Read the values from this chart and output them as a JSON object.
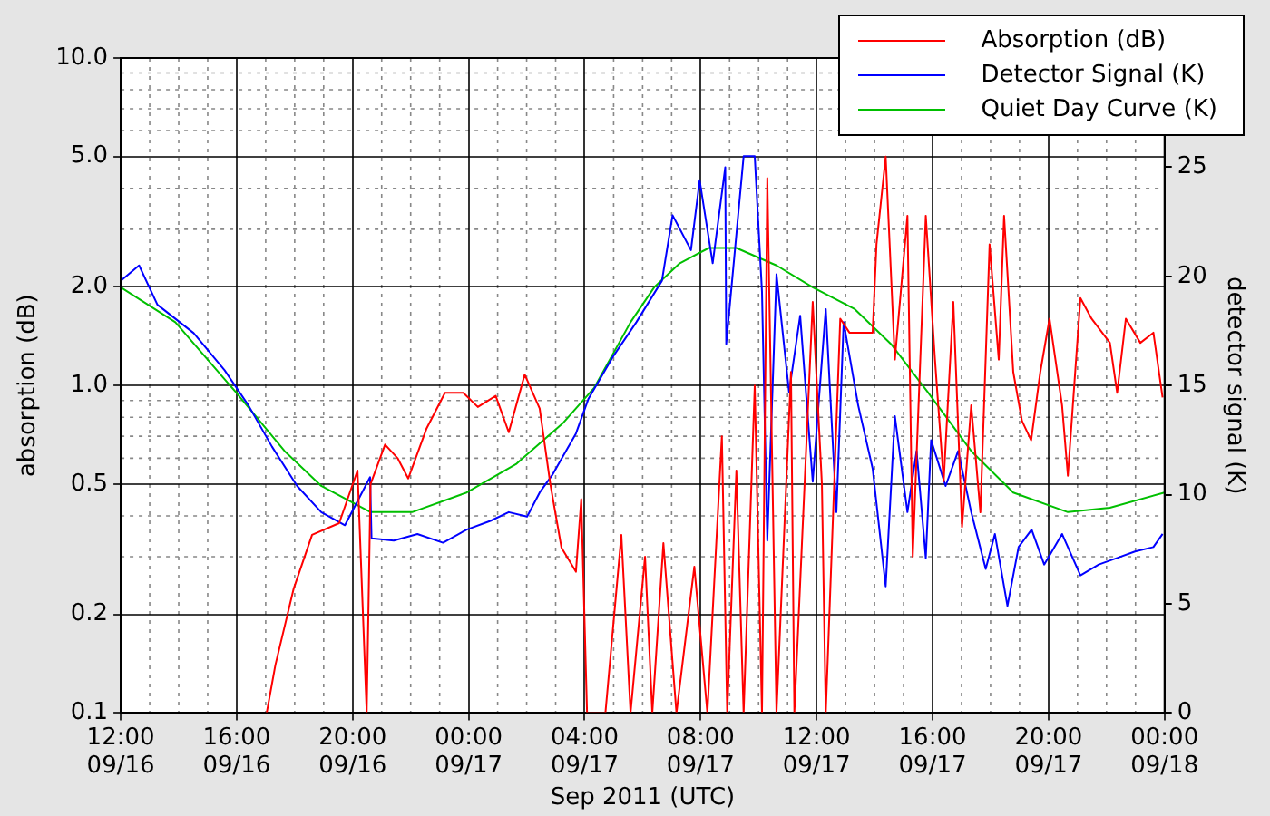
{
  "chart_data": {
    "type": "line",
    "xlabel": "Sep 2011 (UTC)",
    "ylabel": "absorption (dB)",
    "y2label": "detector signal (K)",
    "log": "y",
    "grid": true,
    "legend": "top right",
    "line_style": "solid",
    "marker": "none",
    "xlim": [
      "2011-09-16T12:00",
      "2011-09-18T00:00"
    ],
    "xticks": [
      {
        "value": "2011-09-16T12:00",
        "label": "12:00\n09/16"
      },
      {
        "value": "2011-09-16T16:00",
        "label": "16:00\n09/16"
      },
      {
        "value": "2011-09-16T20:00",
        "label": "20:00\n09/16"
      },
      {
        "value": "2011-09-17T00:00",
        "label": "00:00\n09/17"
      },
      {
        "value": "2011-09-17T04:00",
        "label": "04:00\n09/17"
      },
      {
        "value": "2011-09-17T08:00",
        "label": "08:00\n09/17"
      },
      {
        "value": "2011-09-17T12:00",
        "label": "12:00\n09/17"
      },
      {
        "value": "2011-09-17T16:00",
        "label": "16:00\n09/17"
      },
      {
        "value": "2011-09-17T20:00",
        "label": "20:00\n09/17"
      },
      {
        "value": "2011-09-18T00:00",
        "label": "00:00\n09/18"
      }
    ],
    "ylim": [
      0.1,
      10
    ],
    "yticks": [
      0.1,
      0.2,
      0.5,
      {
        "value": 1,
        "label": "1.0"
      },
      {
        "value": 2,
        "label": "2.0"
      },
      {
        "value": 5,
        "label": "5.0"
      },
      {
        "value": 10,
        "label": "10.0"
      }
    ],
    "y2lim": [
      0,
      30
    ],
    "y2ticks": [
      0,
      5,
      10,
      15,
      20,
      25
    ],
    "series": [
      {
        "name": "Absorption (dB)",
        "color": "#ff0000",
        "x": [
          "2011-09-16T17:02",
          "2011-09-16T17:20",
          "2011-09-16T17:58",
          "2011-09-16T18:36",
          "2011-09-16T19:32",
          "2011-09-16T20:10",
          "2011-09-16T20:29",
          "2011-09-16T20:37",
          "2011-09-16T21:07",
          "2011-09-16T21:33",
          "2011-09-16T21:55",
          "2011-09-16T22:33",
          "2011-09-16T23:11",
          "2011-09-16T23:49",
          "2011-09-17T00:19",
          "2011-09-17T00:56",
          "2011-09-17T01:23",
          "2011-09-17T01:56",
          "2011-09-17T02:27",
          "2011-09-17T02:49",
          "2011-09-17T03:12",
          "2011-09-17T03:42",
          "2011-09-17T03:53",
          "2011-09-17T04:05",
          "2011-09-17T04:43",
          "2011-09-17T05:16",
          "2011-09-17T05:35",
          "2011-09-17T06:05",
          "2011-09-17T06:20",
          "2011-09-17T06:43",
          "2011-09-17T07:10",
          "2011-09-17T07:47",
          "2011-09-17T08:14",
          "2011-09-17T08:44",
          "2011-09-17T08:55",
          "2011-09-17T09:14",
          "2011-09-17T09:29",
          "2011-09-17T09:52",
          "2011-09-17T10:07",
          "2011-09-17T10:18",
          "2011-09-17T10:37",
          "2011-09-17T11:07",
          "2011-09-17T11:14",
          "2011-09-17T11:52",
          "2011-09-17T12:11",
          "2011-09-17T12:19",
          "2011-09-17T12:49",
          "2011-09-17T13:08",
          "2011-09-17T13:56",
          "2011-09-17T14:04",
          "2011-09-17T14:23",
          "2011-09-17T14:42",
          "2011-09-17T15:08",
          "2011-09-17T15:19",
          "2011-09-17T15:46",
          "2011-09-17T16:05",
          "2011-09-17T16:23",
          "2011-09-17T16:43",
          "2011-09-17T17:01",
          "2011-09-17T17:20",
          "2011-09-17T17:39",
          "2011-09-17T17:58",
          "2011-09-17T18:17",
          "2011-09-17T18:28",
          "2011-09-17T18:47",
          "2011-09-17T19:05",
          "2011-09-17T19:24",
          "2011-09-17T19:43",
          "2011-09-17T20:02",
          "2011-09-17T20:28",
          "2011-09-17T20:40",
          "2011-09-17T21:06",
          "2011-09-17T21:29",
          "2011-09-17T22:07",
          "2011-09-17T22:22",
          "2011-09-17T22:40",
          "2011-09-17T23:10",
          "2011-09-17T23:37",
          "2011-09-17T23:56"
        ],
        "values": [
          0.1,
          0.14,
          0.24,
          0.35,
          0.38,
          0.55,
          0.1,
          0.5,
          0.66,
          0.6,
          0.52,
          0.74,
          0.95,
          0.95,
          0.86,
          0.93,
          0.72,
          1.08,
          0.85,
          0.5,
          0.32,
          0.27,
          0.45,
          0.1,
          0.1,
          0.35,
          0.1,
          0.3,
          0.1,
          0.33,
          0.1,
          0.28,
          0.1,
          0.7,
          0.1,
          0.55,
          0.1,
          1,
          0.1,
          4.3,
          0.1,
          1.1,
          0.1,
          1.8,
          0.5,
          0.1,
          1.6,
          1.45,
          1.45,
          2.7,
          5,
          1.2,
          3.3,
          0.3,
          3.3,
          1.2,
          0.51,
          1.8,
          0.37,
          0.87,
          0.41,
          2.7,
          1.2,
          3.3,
          1.1,
          0.78,
          0.68,
          1.1,
          1.6,
          0.87,
          0.53,
          1.85,
          1.6,
          1.35,
          0.95,
          1.6,
          1.35,
          1.45,
          0.92
        ]
      },
      {
        "name": "Detector Signal (K)",
        "color": "#0000ff",
        "axis": "y2",
        "x": [
          "2011-09-16T12:00",
          "2011-09-16T12:38",
          "2011-09-16T13:16",
          "2011-09-16T14:31",
          "2011-09-16T15:35",
          "2011-09-16T16:24",
          "2011-09-16T17:13",
          "2011-09-16T18:05",
          "2011-09-16T18:55",
          "2011-09-16T19:44",
          "2011-09-16T20:36",
          "2011-09-16T20:39",
          "2011-09-16T21:25",
          "2011-09-16T22:14",
          "2011-09-16T23:07",
          "2011-09-16T23:56",
          "2011-09-17T00:45",
          "2011-09-17T01:23",
          "2011-09-17T02:01",
          "2011-09-17T02:27",
          "2011-09-17T02:53",
          "2011-09-17T03:42",
          "2011-09-17T04:08",
          "2011-09-17T04:58",
          "2011-09-17T05:47",
          "2011-09-17T06:40",
          "2011-09-17T07:02",
          "2011-09-17T07:40",
          "2011-09-17T07:58",
          "2011-09-17T08:25",
          "2011-09-17T08:51",
          "2011-09-17T08:53",
          "2011-09-17T09:29",
          "2011-09-17T09:52",
          "2011-09-17T10:07",
          "2011-09-17T10:18",
          "2011-09-17T10:37",
          "2011-09-17T11:03",
          "2011-09-17T11:26",
          "2011-09-17T11:52",
          "2011-09-17T12:19",
          "2011-09-17T12:41",
          "2011-09-17T12:56",
          "2011-09-17T13:26",
          "2011-09-17T13:56",
          "2011-09-17T14:23",
          "2011-09-17T14:42",
          "2011-09-17T15:08",
          "2011-09-17T15:27",
          "2011-09-17T15:46",
          "2011-09-17T15:57",
          "2011-09-17T16:27",
          "2011-09-17T16:53",
          "2011-09-17T17:20",
          "2011-09-17T17:50",
          "2011-09-17T18:09",
          "2011-09-17T18:35",
          "2011-09-17T18:58",
          "2011-09-17T19:25",
          "2011-09-17T19:51",
          "2011-09-17T20:28",
          "2011-09-17T21:06",
          "2011-09-17T21:44",
          "2011-09-17T22:22",
          "2011-09-17T22:59",
          "2011-09-17T23:37",
          "2011-09-17T23:56"
        ],
        "values": [
          19.8,
          20.5,
          18.7,
          17.4,
          15.7,
          14.1,
          12.2,
          10.4,
          9.2,
          8.6,
          10.8,
          8,
          7.9,
          8.2,
          7.8,
          8.4,
          8.8,
          9.2,
          9,
          10.1,
          10.9,
          12.8,
          14.4,
          16.3,
          17.9,
          19.8,
          22.8,
          21.2,
          24.4,
          20.6,
          25,
          16.9,
          25.5,
          25.5,
          19.3,
          7.9,
          20.1,
          14.7,
          18.2,
          10.6,
          18.5,
          9.2,
          17.9,
          14.1,
          11.2,
          5.8,
          13.6,
          9.2,
          12,
          7.1,
          12.5,
          10.4,
          12,
          9.2,
          6.6,
          8.2,
          4.9,
          7.6,
          8.4,
          6.8,
          8.2,
          6.3,
          6.8,
          7.1,
          7.4,
          7.6,
          8.2
        ]
      },
      {
        "name": "Quiet Day Curve (K)",
        "color": "#00bf00",
        "axis": "y2",
        "x": [
          "2011-09-16T12:00",
          "2011-09-16T13:53",
          "2011-09-16T15:58",
          "2011-09-16T17:39",
          "2011-09-16T18:55",
          "2011-09-16T20:37",
          "2011-09-16T22:03",
          "2011-09-16T23:56",
          "2011-09-17T01:38",
          "2011-09-17T03:16",
          "2011-09-17T04:20",
          "2011-09-17T05:35",
          "2011-09-17T06:24",
          "2011-09-17T07:17",
          "2011-09-17T08:17",
          "2011-09-17T09:14",
          "2011-09-17T10:37",
          "2011-09-17T11:52",
          "2011-09-17T13:19",
          "2011-09-17T14:34",
          "2011-09-17T15:50",
          "2011-09-17T17:20",
          "2011-09-17T18:47",
          "2011-09-17T20:40",
          "2011-09-17T22:07",
          "2011-09-18T00:00"
        ],
        "values": [
          19.5,
          17.9,
          14.7,
          12,
          10.4,
          9.2,
          9.2,
          10.1,
          11.4,
          13.3,
          14.9,
          17.9,
          19.5,
          20.6,
          21.3,
          21.3,
          20.5,
          19.5,
          18.5,
          16.9,
          14.7,
          12,
          10.1,
          9.2,
          9.4,
          10.1
        ]
      }
    ]
  }
}
